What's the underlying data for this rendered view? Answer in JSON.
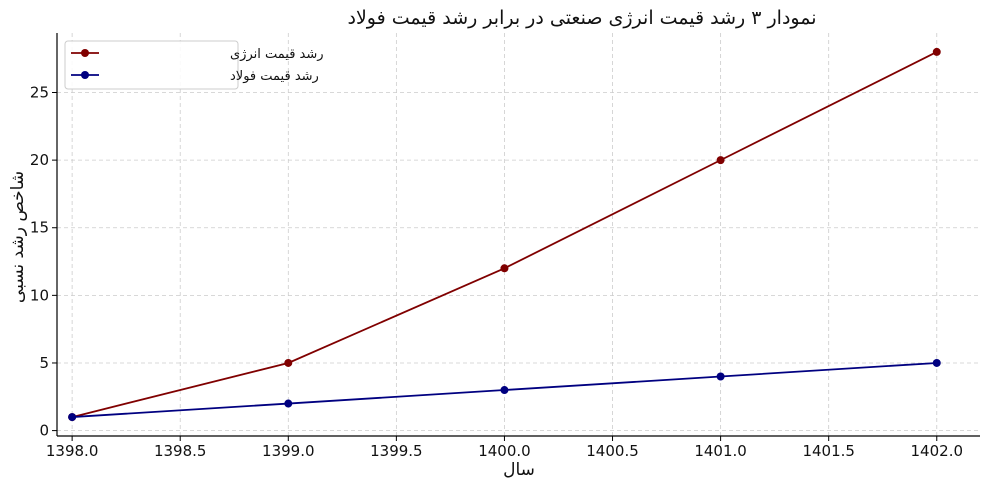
{
  "chart_data": {
    "type": "line",
    "title": "نمودار ۳ رشد قیمت انرژی صنعتی در برابر رشد قیمت فولاد",
    "xlabel": "سال",
    "ylabel": "شاخص رشد نسبی",
    "x": [
      1398,
      1399,
      1400,
      1401,
      1402
    ],
    "xlim": [
      1397.93,
      1402.2
    ],
    "ylim": [
      -0.4,
      29.4
    ],
    "xticks": [
      1398.0,
      1398.5,
      1399.0,
      1399.5,
      1400.0,
      1400.5,
      1401.0,
      1401.5,
      1402.0
    ],
    "xtick_labels": [
      "1398.0",
      "1398.5",
      "1399.0",
      "1399.5",
      "1400.0",
      "1400.5",
      "1401.0",
      "1401.5",
      "1402.0"
    ],
    "yticks": [
      0,
      5,
      10,
      15,
      20,
      25
    ],
    "ytick_labels": [
      "0",
      "5",
      "10",
      "15",
      "20",
      "25"
    ],
    "grid": true,
    "legend_position": "top-left",
    "series": [
      {
        "name": "رشد قیمت انرژی",
        "values": [
          1,
          5,
          12,
          20,
          28
        ],
        "color": "#800000",
        "marker": "circle"
      },
      {
        "name": "رشد قیمت فولاد",
        "values": [
          1,
          2,
          3,
          4,
          5
        ],
        "color": "#000080",
        "marker": "circle"
      }
    ]
  }
}
